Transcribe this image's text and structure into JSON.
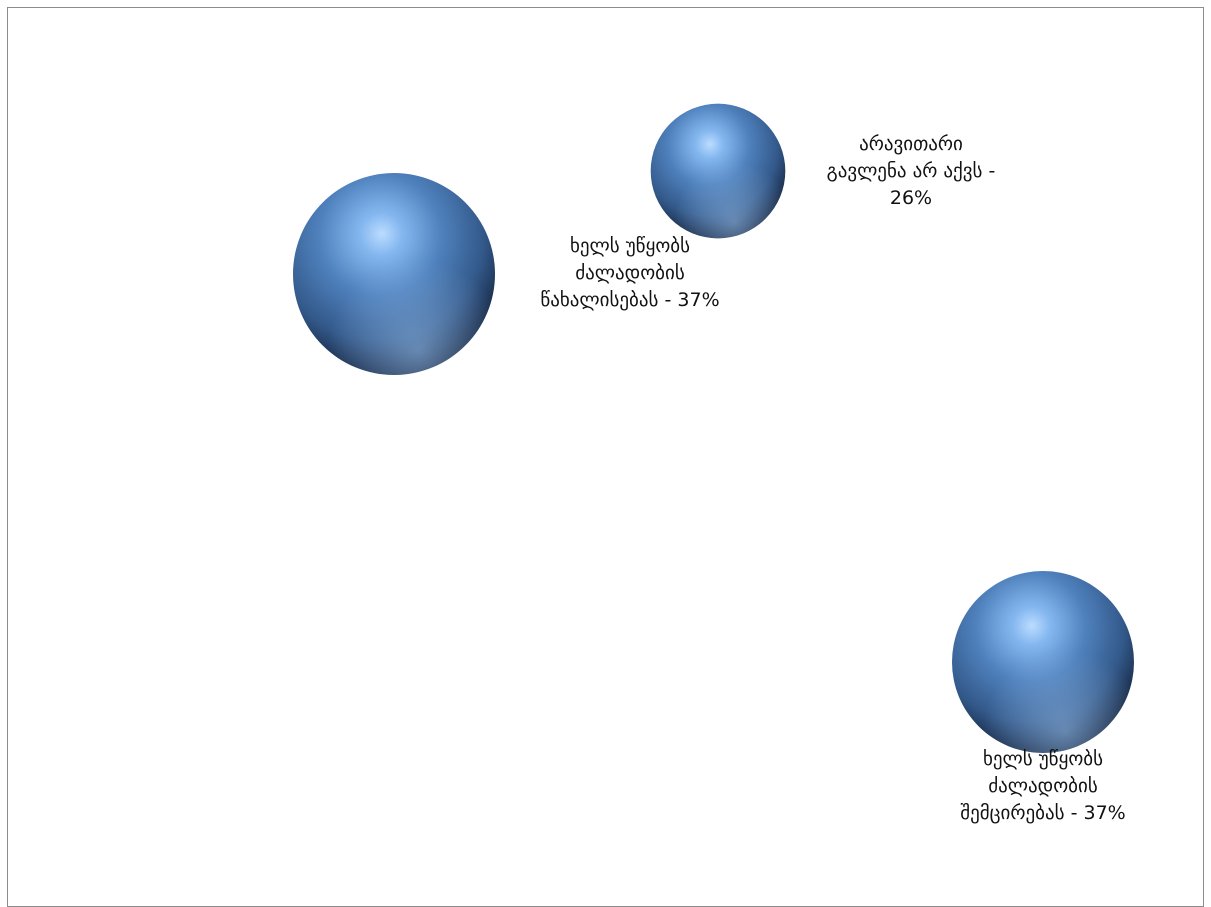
{
  "chart_data": {
    "type": "bubble",
    "title": "",
    "xlabel": "",
    "ylabel": "",
    "axes_visible": false,
    "grid": false,
    "legend": "none",
    "marker_style": "3d-sphere",
    "colors": {
      "bubble": "#4f81bd",
      "bubble_highlight": "#bcdcff",
      "bubble_shadow": "#0f1e33",
      "frame": "#8c8c8c",
      "label": "#111111"
    },
    "points": [
      {
        "label_lines": [
          "ხელს უწყობს",
          "ძალადობის",
          "წახალისებას - 37%"
        ],
        "percent": 37
      },
      {
        "label_lines": [
          "არავითარი",
          "გავლენა არ აქვს -",
          "26%"
        ],
        "percent": 26
      },
      {
        "label_lines": [
          "ხელს უწყობს",
          "ძალადობის",
          "შემცირებას - 37%"
        ],
        "percent": 37
      }
    ]
  }
}
